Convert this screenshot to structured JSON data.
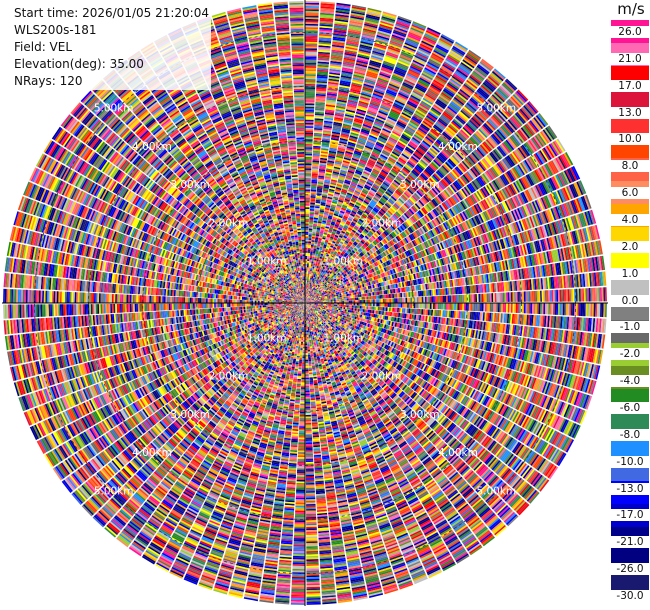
{
  "header": {
    "start_time": "Start time: 2026/01/05 21:20:04",
    "site": "WLS200s-181",
    "field": "Field: VEL",
    "elevation": "Elevation(deg): 35.00",
    "nrays": "NRays: 120"
  },
  "colorbar": {
    "unit": "m/s",
    "ticks": [
      "26.0",
      "21.0",
      "17.0",
      "13.0",
      "10.0",
      "8.0",
      "6.0",
      "4.0",
      "2.0",
      "1.0",
      "0.0",
      "-1.0",
      "-2.0",
      "-4.0",
      "-6.0",
      "-8.0",
      "-10.0",
      "-13.0",
      "-17.0",
      "-21.0",
      "-26.0",
      "-30.0"
    ],
    "colors": [
      "#ff1493",
      "#ff69b4",
      "#ff0000",
      "#dc143c",
      "#ff3030",
      "#ff4500",
      "#ff6347",
      "#ff8c60",
      "#ffa500",
      "#ffd700",
      "#ffff00",
      "#c0c0c0",
      "#808080",
      "#696969",
      "#9acd32",
      "#6b8e23",
      "#228b22",
      "#2e8b57",
      "#1e90ff",
      "#4169e1",
      "#0000ff",
      "#0000cd",
      "#00008b",
      "#000080",
      "#191970"
    ]
  },
  "chart_data": {
    "type": "heatmap",
    "title": "",
    "projection": "polar PPI",
    "n_rays": 120,
    "range_rings_km": [
      1.0,
      2.0,
      3.0,
      4.0,
      5.0
    ],
    "range_labels": [
      "1.00km",
      "2.00km",
      "3.00km",
      "4.00km",
      "5.00km"
    ],
    "max_range_km": 5.6,
    "value_range": [
      -30.0,
      26.0
    ],
    "unit": "m/s"
  }
}
